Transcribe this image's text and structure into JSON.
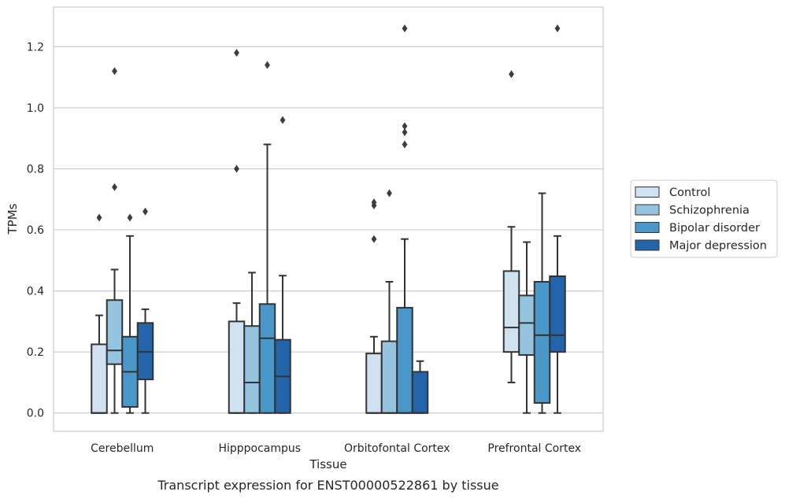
{
  "chart_data": {
    "type": "box",
    "caption": "Transcript expression for ENST00000522861 by tissue",
    "xlabel": "Tissue",
    "ylabel": "TPMs",
    "ylim": [
      -0.06,
      1.33
    ],
    "yticks": [
      "0.0",
      "0.2",
      "0.4",
      "0.6",
      "0.8",
      "1.0",
      "1.2"
    ],
    "grid": "horizontal",
    "legend_position": "right",
    "categories": [
      "Cerebellum",
      "Hipppocampus",
      "Orbitofontal Cortex",
      "Prefrontal Cortex"
    ],
    "series": [
      {
        "name": "Control",
        "color": "#d0e1f2",
        "boxes": [
          {
            "q1": 0.0,
            "median": 0.0,
            "q3": 0.225,
            "whisker_low": 0.0,
            "whisker_high": 0.32,
            "outliers": [
              0.64
            ]
          },
          {
            "q1": 0.0,
            "median": 0.0,
            "q3": 0.3,
            "whisker_low": 0.0,
            "whisker_high": 0.36,
            "outliers": [
              0.8,
              1.18
            ]
          },
          {
            "q1": 0.0,
            "median": 0.0,
            "q3": 0.195,
            "whisker_low": 0.0,
            "whisker_high": 0.25,
            "outliers": [
              0.57,
              0.68,
              0.69
            ]
          },
          {
            "q1": 0.2,
            "median": 0.28,
            "q3": 0.465,
            "whisker_low": 0.1,
            "whisker_high": 0.61,
            "outliers": [
              1.11
            ]
          }
        ]
      },
      {
        "name": "Schizophrenia",
        "color": "#94c4df",
        "boxes": [
          {
            "q1": 0.16,
            "median": 0.205,
            "q3": 0.37,
            "whisker_low": 0.0,
            "whisker_high": 0.47,
            "outliers": [
              0.74,
              1.12
            ]
          },
          {
            "q1": 0.0,
            "median": 0.1,
            "q3": 0.285,
            "whisker_low": 0.0,
            "whisker_high": 0.46,
            "outliers": []
          },
          {
            "q1": 0.0,
            "median": 0.0,
            "q3": 0.235,
            "whisker_low": 0.0,
            "whisker_high": 0.43,
            "outliers": [
              0.72
            ]
          },
          {
            "q1": 0.19,
            "median": 0.295,
            "q3": 0.385,
            "whisker_low": 0.0,
            "whisker_high": 0.56,
            "outliers": []
          }
        ]
      },
      {
        "name": "Bipolar disorder",
        "color": "#4a98c9",
        "boxes": [
          {
            "q1": 0.02,
            "median": 0.135,
            "q3": 0.25,
            "whisker_low": 0.0,
            "whisker_high": 0.58,
            "outliers": [
              0.64
            ]
          },
          {
            "q1": 0.0,
            "median": 0.245,
            "q3": 0.357,
            "whisker_low": 0.0,
            "whisker_high": 0.88,
            "outliers": [
              1.14
            ]
          },
          {
            "q1": 0.0,
            "median": 0.0,
            "q3": 0.345,
            "whisker_low": 0.0,
            "whisker_high": 0.57,
            "outliers": [
              0.88,
              0.92,
              0.94,
              1.26
            ]
          },
          {
            "q1": 0.033,
            "median": 0.255,
            "q3": 0.43,
            "whisker_low": 0.0,
            "whisker_high": 0.72,
            "outliers": []
          }
        ]
      },
      {
        "name": "Major depression",
        "color": "#2364aa",
        "boxes": [
          {
            "q1": 0.11,
            "median": 0.2,
            "q3": 0.295,
            "whisker_low": 0.0,
            "whisker_high": 0.34,
            "outliers": [
              0.66
            ]
          },
          {
            "q1": 0.0,
            "median": 0.12,
            "q3": 0.24,
            "whisker_low": 0.0,
            "whisker_high": 0.45,
            "outliers": [
              0.96
            ]
          },
          {
            "q1": 0.0,
            "median": 0.0,
            "q3": 0.135,
            "whisker_low": 0.0,
            "whisker_high": 0.17,
            "outliers": []
          },
          {
            "q1": 0.2,
            "median": 0.255,
            "q3": 0.448,
            "whisker_low": 0.0,
            "whisker_high": 0.58,
            "outliers": [
              1.26
            ]
          }
        ]
      }
    ]
  }
}
